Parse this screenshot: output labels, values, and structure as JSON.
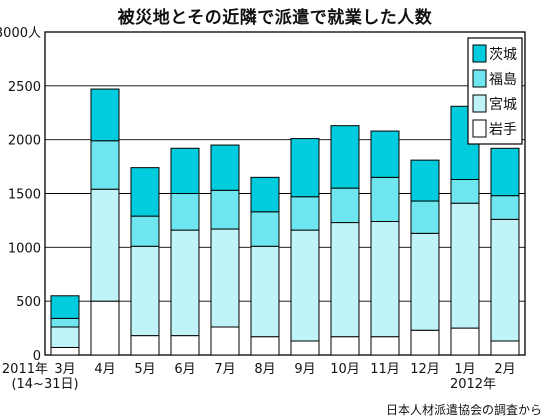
{
  "chart_data": {
    "type": "bar",
    "stacked": true,
    "title": "被災地とその近隣で派遣で就業した人数",
    "unit": "人",
    "ylim": [
      0,
      3000
    ],
    "yticks": [
      0,
      500,
      1000,
      1500,
      2000,
      2500,
      3000
    ],
    "ytick_labels": [
      "0",
      "500",
      "1000",
      "1500",
      "2000",
      "2500",
      "3000"
    ],
    "grid": true,
    "legend_position": "top-right",
    "categories": [
      "3月",
      "4月",
      "5月",
      "6月",
      "7月",
      "8月",
      "9月",
      "10月",
      "11月",
      "12月",
      "1月",
      "2月"
    ],
    "year_labels": [
      {
        "category_index": 0,
        "text": "2011年"
      },
      {
        "category_index": 10,
        "text": "2012年"
      }
    ],
    "sub_label": {
      "category_index": 0,
      "text": "(14~31日)"
    },
    "series": [
      {
        "name": "岩手",
        "color": "#ffffff",
        "values": [
          70,
          500,
          180,
          180,
          260,
          170,
          130,
          170,
          170,
          230,
          250,
          130
        ]
      },
      {
        "name": "宮城",
        "color": "#bff3f7",
        "values": [
          190,
          1040,
          830,
          980,
          910,
          840,
          1030,
          1060,
          1070,
          900,
          1160,
          1130
        ]
      },
      {
        "name": "福島",
        "color": "#6fe6ef",
        "values": [
          80,
          450,
          280,
          340,
          360,
          320,
          310,
          320,
          410,
          300,
          220,
          220
        ]
      },
      {
        "name": "茨城",
        "color": "#00ccdd",
        "values": [
          210,
          480,
          450,
          420,
          420,
          320,
          540,
          580,
          430,
          380,
          680,
          440
        ]
      }
    ]
  },
  "source_note": "日本人材派遣協会の調査から"
}
